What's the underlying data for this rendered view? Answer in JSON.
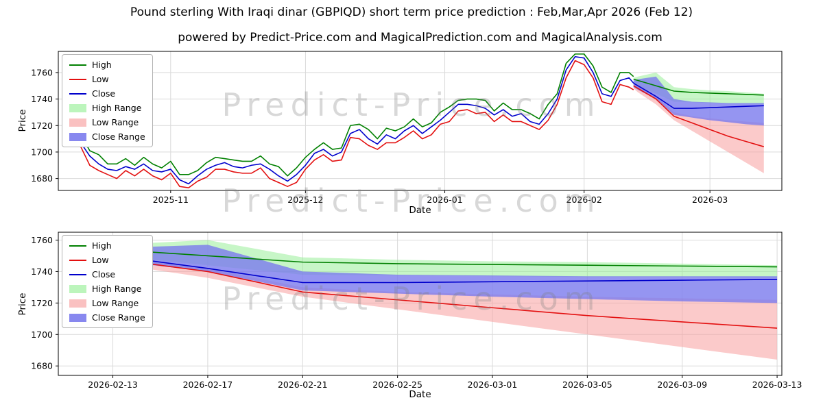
{
  "figure": {
    "title": "Pound sterling With Iraqi dinar (GBPIQD) short term price prediction : Feb,Mar,Apr 2026 (Feb 12)",
    "subtitle": "powered by Predict-Price.com and MagicalPrediction.com and MagicalAnalysis.com",
    "watermark": "Predict-Price.com",
    "background": "#ffffff"
  },
  "colors": {
    "high_line": "#008000",
    "low_line": "#e31010",
    "close_line": "#0000cc",
    "high_range": "#90ee90",
    "low_range": "#f79f9f",
    "close_range": "#7b7bed",
    "grid": "#d9d9d9",
    "axis": "#000000"
  },
  "legend": {
    "position": "upper left",
    "items": [
      {
        "label": "High",
        "swatch": "line",
        "color_key": "high_line"
      },
      {
        "label": "Low",
        "swatch": "line",
        "color_key": "low_line"
      },
      {
        "label": "Close",
        "swatch": "line",
        "color_key": "close_line"
      },
      {
        "label": "High Range",
        "swatch": "patch",
        "color_key": "high_range"
      },
      {
        "label": "Low Range",
        "swatch": "patch",
        "color_key": "low_range"
      },
      {
        "label": "Close Range",
        "swatch": "patch",
        "color_key": "close_range"
      }
    ]
  },
  "top_chart": {
    "xlabel": "Date",
    "ylabel": "Price",
    "xlim": [
      -1,
      160
    ],
    "ylim": [
      1671,
      1776
    ],
    "yticks": [
      1680,
      1700,
      1720,
      1740,
      1760
    ],
    "xticks": [
      {
        "label": "2025-11",
        "day": 24
      },
      {
        "label": "2025-12",
        "day": 54
      },
      {
        "label": "2026-01",
        "day": 85
      },
      {
        "label": "2026-02",
        "day": 116
      },
      {
        "label": "2026-03",
        "day": 144
      }
    ]
  },
  "bottom_chart": {
    "xlabel": "Date",
    "ylabel": "Price",
    "xlim": [
      125.7,
      156.2
    ],
    "ylim": [
      1674,
      1765
    ],
    "yticks": [
      1680,
      1700,
      1720,
      1740,
      1760
    ],
    "xticks": [
      {
        "label": "2026-02-13",
        "day": 128
      },
      {
        "label": "2026-02-17",
        "day": 132
      },
      {
        "label": "2026-02-21",
        "day": 136
      },
      {
        "label": "2026-02-25",
        "day": 140
      },
      {
        "label": "2026-03-01",
        "day": 144
      },
      {
        "label": "2026-03-05",
        "day": 148
      },
      {
        "label": "2026-03-09",
        "day": 152
      },
      {
        "label": "2026-03-13",
        "day": 156
      }
    ]
  },
  "chart_data": {
    "type": "line",
    "title": "Pound sterling With Iraqi dinar (GBPIQD) short term price prediction : Feb,Mar,Apr 2026 (Feb 12)",
    "ylabel": "Price",
    "xlabel": "Date",
    "grid": true,
    "day_zero_date": "2025-10-08",
    "historical": {
      "days": [
        0,
        2,
        4,
        6,
        8,
        10,
        12,
        14,
        16,
        18,
        20,
        22,
        24,
        26,
        28,
        30,
        32,
        34,
        36,
        38,
        40,
        42,
        44,
        46,
        48,
        50,
        52,
        54,
        56,
        58,
        60,
        62,
        64,
        66,
        68,
        70,
        72,
        74,
        76,
        78,
        80,
        82,
        84,
        86,
        88,
        90,
        92,
        94,
        96,
        98,
        100,
        102,
        104,
        106,
        108,
        110,
        112,
        114,
        116,
        118,
        120,
        122,
        124,
        126,
        127
      ],
      "close": [
        1712,
        1717,
        1707,
        1697,
        1691,
        1687,
        1686,
        1689,
        1687,
        1691,
        1686,
        1685,
        1687,
        1679,
        1676,
        1682,
        1687,
        1690,
        1692,
        1689,
        1688,
        1690,
        1691,
        1687,
        1682,
        1678,
        1683,
        1690,
        1699,
        1702,
        1697,
        1700,
        1714,
        1717,
        1710,
        1706,
        1713,
        1710,
        1716,
        1720,
        1714,
        1719,
        1724,
        1730,
        1736,
        1736,
        1735,
        1733,
        1728,
        1732,
        1727,
        1729,
        1723,
        1721,
        1729,
        1740,
        1762,
        1772,
        1771,
        1760,
        1744,
        1742,
        1754,
        1756,
        1752
      ],
      "high": [
        1717,
        1720,
        1713,
        1701,
        1698,
        1691,
        1691,
        1695,
        1690,
        1696,
        1691,
        1688,
        1693,
        1683,
        1683,
        1686,
        1692,
        1696,
        1695,
        1694,
        1693,
        1693,
        1697,
        1691,
        1689,
        1682,
        1688,
        1696,
        1702,
        1707,
        1702,
        1703,
        1720,
        1721,
        1717,
        1710,
        1718,
        1716,
        1719,
        1725,
        1719,
        1722,
        1730,
        1734,
        1739,
        1740,
        1740,
        1739,
        1731,
        1737,
        1732,
        1732,
        1729,
        1725,
        1736,
        1744,
        1767,
        1774,
        1774,
        1765,
        1749,
        1745,
        1760,
        1760,
        1757
      ],
      "low": [
        1708,
        1711,
        1704,
        1690,
        1686,
        1683,
        1680,
        1686,
        1682,
        1687,
        1682,
        1679,
        1684,
        1674,
        1673,
        1678,
        1681,
        1687,
        1687,
        1685,
        1684,
        1684,
        1688,
        1680,
        1677,
        1674,
        1677,
        1687,
        1694,
        1698,
        1693,
        1694,
        1711,
        1710,
        1705,
        1702,
        1707,
        1707,
        1711,
        1716,
        1710,
        1713,
        1721,
        1723,
        1731,
        1732,
        1729,
        1730,
        1723,
        1728,
        1723,
        1723,
        1720,
        1717,
        1724,
        1736,
        1756,
        1769,
        1766,
        1756,
        1738,
        1736,
        1751,
        1749,
        1747
      ]
    },
    "forecast": {
      "days": [
        127,
        128,
        132,
        136,
        140,
        144,
        148,
        152,
        156
      ],
      "high": [
        1755,
        1754,
        1750,
        1746,
        1745,
        1744.5,
        1744,
        1743.5,
        1743
      ],
      "low": [
        1750,
        1748,
        1740,
        1727,
        1722,
        1717,
        1712,
        1708,
        1704
      ],
      "close": [
        1752,
        1750,
        1742,
        1733,
        1733,
        1733.5,
        1734,
        1734.5,
        1735
      ],
      "high_range": {
        "upper": [
          1756,
          1757,
          1760,
          1749,
          1747.5,
          1746.5,
          1746,
          1745,
          1744
        ],
        "lower": [
          1751,
          1750,
          1744,
          1738,
          1737.5,
          1737,
          1736.5,
          1736.5,
          1736
        ]
      },
      "low_range": {
        "upper": [
          1752,
          1751,
          1742,
          1730,
          1727,
          1725.5,
          1724,
          1723,
          1722
        ],
        "lower": [
          1748,
          1745,
          1736,
          1724,
          1716,
          1708,
          1700,
          1692,
          1684
        ]
      },
      "close_range": {
        "upper": [
          1754,
          1755,
          1757,
          1740,
          1738,
          1737.5,
          1737,
          1737,
          1737
        ],
        "lower": [
          1749,
          1747,
          1740,
          1728,
          1726,
          1724,
          1722.5,
          1721,
          1720
        ]
      }
    }
  }
}
